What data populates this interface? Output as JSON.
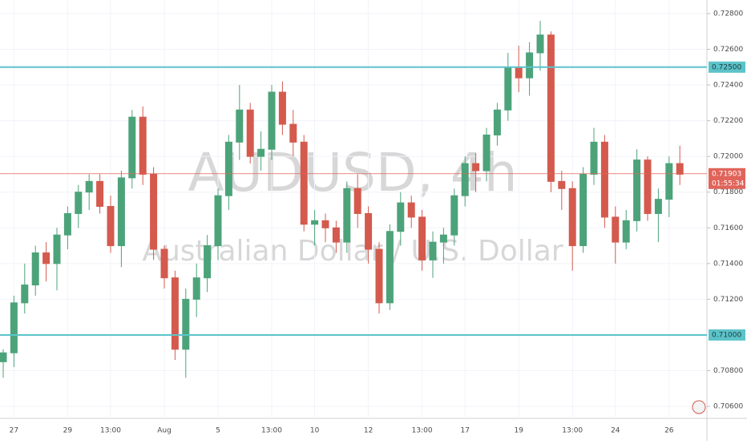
{
  "chart_data": {
    "type": "candlestick",
    "watermark_symbol": "AUDUSD, 4h",
    "watermark_name": "Australian Dollar / U.S. Dollar",
    "categories": [
      null,
      "27",
      null,
      null,
      null,
      null,
      "29",
      null,
      null,
      null,
      "13:00",
      null,
      null,
      null,
      null,
      "Aug",
      null,
      null,
      null,
      null,
      "5",
      null,
      null,
      null,
      null,
      "13:00",
      null,
      null,
      null,
      "10",
      null,
      null,
      null,
      null,
      "12",
      null,
      null,
      null,
      null,
      "13:00",
      null,
      null,
      null,
      "17",
      null,
      null,
      null,
      null,
      "19",
      null,
      null,
      null,
      null,
      "13:00",
      null,
      null,
      null,
      "24",
      null,
      null,
      null,
      null,
      "26",
      null
    ],
    "open": [
      0.7085,
      0.709,
      0.7118,
      0.7128,
      0.7146,
      0.714,
      0.7156,
      0.7168,
      0.718,
      0.7186,
      0.7172,
      0.715,
      0.7188,
      0.7222,
      0.719,
      0.7148,
      0.7132,
      0.7092,
      0.712,
      0.7132,
      0.715,
      0.7178,
      0.7208,
      0.7226,
      0.72,
      0.7204,
      0.7236,
      0.7218,
      0.7208,
      0.7162,
      0.7164,
      0.716,
      0.7152,
      0.7182,
      0.7168,
      0.7148,
      0.7118,
      0.7158,
      0.7174,
      0.7166,
      0.7142,
      0.7152,
      0.7156,
      0.7178,
      0.7196,
      0.7192,
      0.7212,
      0.7226,
      0.725,
      0.7244,
      0.7258,
      0.7268,
      0.7186,
      0.7182,
      0.715,
      0.719,
      0.7208,
      0.7166,
      0.7152,
      0.7164,
      0.7198,
      0.7168,
      0.7176,
      0.7196
    ],
    "high": [
      0.7092,
      0.7122,
      0.714,
      0.715,
      0.7152,
      0.716,
      0.7172,
      0.7184,
      0.719,
      0.719,
      0.7178,
      0.7192,
      0.7226,
      0.7228,
      0.7194,
      0.715,
      0.7136,
      0.7126,
      0.714,
      0.7156,
      0.7182,
      0.7212,
      0.724,
      0.723,
      0.7214,
      0.724,
      0.7242,
      0.7226,
      0.7212,
      0.717,
      0.7168,
      0.7164,
      0.7186,
      0.719,
      0.7172,
      0.7152,
      0.7162,
      0.718,
      0.7178,
      0.717,
      0.7158,
      0.716,
      0.7182,
      0.72,
      0.7202,
      0.7216,
      0.723,
      0.7258,
      0.7262,
      0.7264,
      0.7276,
      0.727,
      0.7192,
      0.7186,
      0.7194,
      0.7216,
      0.7212,
      0.7172,
      0.717,
      0.7204,
      0.72,
      0.7182,
      0.72,
      0.7206
    ],
    "low": [
      0.7076,
      0.7082,
      0.7112,
      0.7122,
      0.713,
      0.7125,
      0.7148,
      0.716,
      0.717,
      0.7168,
      0.7146,
      0.7138,
      0.7182,
      0.7184,
      0.7142,
      0.7126,
      0.7086,
      0.7076,
      0.711,
      0.7124,
      0.7142,
      0.717,
      0.7198,
      0.7196,
      0.7192,
      0.7198,
      0.7212,
      0.72,
      0.7158,
      0.715,
      0.7152,
      0.7146,
      0.7146,
      0.716,
      0.714,
      0.7112,
      0.7114,
      0.715,
      0.716,
      0.7136,
      0.7132,
      0.714,
      0.715,
      0.7172,
      0.718,
      0.7186,
      0.7206,
      0.722,
      0.7236,
      0.7234,
      0.7248,
      0.718,
      0.717,
      0.7136,
      0.7146,
      0.7184,
      0.716,
      0.714,
      0.7148,
      0.7158,
      0.7164,
      0.7152,
      0.7166,
      0.7184
    ],
    "close": [
      0.709,
      0.7118,
      0.7128,
      0.7146,
      0.714,
      0.7156,
      0.7168,
      0.718,
      0.7186,
      0.7172,
      0.715,
      0.7188,
      0.7222,
      0.719,
      0.7148,
      0.7132,
      0.7092,
      0.712,
      0.7132,
      0.715,
      0.7178,
      0.7208,
      0.7226,
      0.72,
      0.7204,
      0.7236,
      0.7218,
      0.7208,
      0.7162,
      0.7164,
      0.716,
      0.7152,
      0.7182,
      0.7168,
      0.7148,
      0.7118,
      0.7158,
      0.7174,
      0.7166,
      0.7142,
      0.7152,
      0.7156,
      0.7178,
      0.7196,
      0.7192,
      0.7212,
      0.7226,
      0.725,
      0.7244,
      0.7258,
      0.7268,
      0.7186,
      0.7182,
      0.715,
      0.719,
      0.7208,
      0.7166,
      0.7152,
      0.7164,
      0.7198,
      0.7168,
      0.7176,
      0.7196,
      0.719
    ],
    "up_color": "#4ca37a",
    "down_color": "#d45a4e",
    "ylim": [
      0.70533,
      0.72876
    ],
    "yticks": [
      {
        "value": 0.706,
        "label": "0.70600"
      },
      {
        "value": 0.708,
        "label": "0.70800"
      },
      {
        "value": 0.712,
        "label": "0.71200"
      },
      {
        "value": 0.714,
        "label": "0.71400"
      },
      {
        "value": 0.716,
        "label": "0.71600"
      },
      {
        "value": 0.718,
        "label": "0.71800"
      },
      {
        "value": 0.72,
        "label": "0.72000"
      },
      {
        "value": 0.722,
        "label": "0.72200"
      },
      {
        "value": 0.724,
        "label": "0.72400"
      },
      {
        "value": 0.726,
        "label": "0.72600"
      },
      {
        "value": 0.728,
        "label": "0.72800"
      }
    ],
    "grid": true,
    "levels": [
      {
        "value": 0.725,
        "label": "0.72500"
      },
      {
        "value": 0.71,
        "label": "0.71000"
      }
    ],
    "level_color": "#5cc3c9",
    "last_price": {
      "value": 0.71903,
      "label": "0.71903"
    },
    "countdown": "01:55:34",
    "last_color": "#e0645a"
  }
}
